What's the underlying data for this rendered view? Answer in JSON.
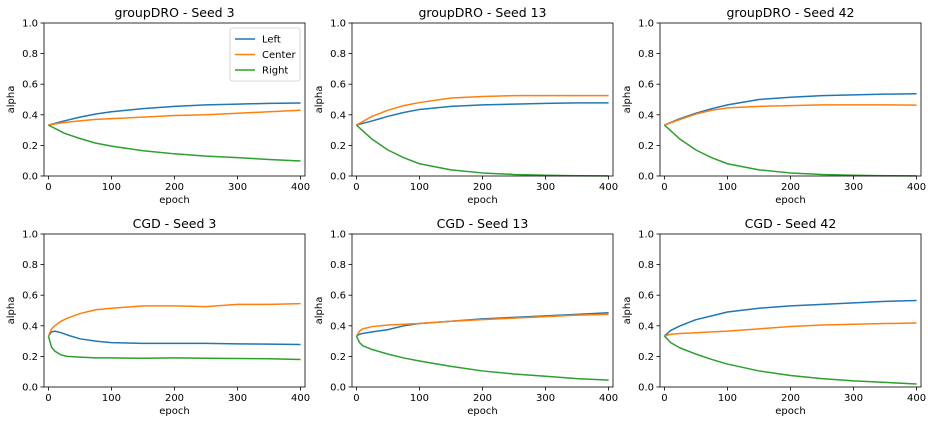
{
  "chart_data": [
    {
      "type": "line",
      "title": "groupDRO - Seed 3",
      "xlabel": "epoch",
      "ylabel": "alpha",
      "xlim": [
        -7,
        407
      ],
      "ylim": [
        0,
        1
      ],
      "xticks": [
        0,
        100,
        200,
        300,
        400
      ],
      "yticks": [
        0.0,
        0.2,
        0.4,
        0.6,
        0.8,
        1.0
      ],
      "legend": "top-right",
      "x": [
        0,
        25,
        50,
        75,
        100,
        150,
        200,
        250,
        300,
        350,
        400
      ],
      "series": [
        {
          "name": "Left",
          "color": "#1f77b4",
          "values": [
            0.333,
            0.36,
            0.385,
            0.405,
            0.42,
            0.44,
            0.455,
            0.465,
            0.47,
            0.475,
            0.477
          ]
        },
        {
          "name": "Center",
          "color": "#ff7f0e",
          "values": [
            0.333,
            0.35,
            0.36,
            0.37,
            0.375,
            0.385,
            0.395,
            0.4,
            0.41,
            0.42,
            0.43
          ]
        },
        {
          "name": "Right",
          "color": "#2ca02c",
          "values": [
            0.333,
            0.28,
            0.245,
            0.215,
            0.195,
            0.165,
            0.145,
            0.13,
            0.12,
            0.108,
            0.098
          ]
        }
      ]
    },
    {
      "type": "line",
      "title": "groupDRO - Seed 13",
      "xlabel": "epoch",
      "ylabel": "alpha",
      "xlim": [
        -7,
        407
      ],
      "ylim": [
        0,
        1
      ],
      "xticks": [
        0,
        100,
        200,
        300,
        400
      ],
      "yticks": [
        0.0,
        0.2,
        0.4,
        0.6,
        0.8,
        1.0
      ],
      "x": [
        0,
        25,
        50,
        75,
        100,
        150,
        200,
        250,
        300,
        350,
        400
      ],
      "series": [
        {
          "name": "Left",
          "color": "#1f77b4",
          "values": [
            0.333,
            0.36,
            0.39,
            0.415,
            0.435,
            0.455,
            0.465,
            0.47,
            0.475,
            0.478,
            0.478
          ]
        },
        {
          "name": "Center",
          "color": "#ff7f0e",
          "values": [
            0.333,
            0.39,
            0.43,
            0.46,
            0.48,
            0.51,
            0.52,
            0.525,
            0.525,
            0.525,
            0.525
          ]
        },
        {
          "name": "Right",
          "color": "#2ca02c",
          "values": [
            0.333,
            0.24,
            0.17,
            0.12,
            0.08,
            0.04,
            0.02,
            0.01,
            0.005,
            0.002,
            0.001
          ]
        }
      ]
    },
    {
      "type": "line",
      "title": "groupDRO - Seed 42",
      "xlabel": "epoch",
      "ylabel": "alpha",
      "xlim": [
        -7,
        407
      ],
      "ylim": [
        0,
        1
      ],
      "xticks": [
        0,
        100,
        200,
        300,
        400
      ],
      "yticks": [
        0.0,
        0.2,
        0.4,
        0.6,
        0.8,
        1.0
      ],
      "x": [
        0,
        25,
        50,
        75,
        100,
        150,
        200,
        250,
        300,
        350,
        400
      ],
      "series": [
        {
          "name": "Left",
          "color": "#1f77b4",
          "values": [
            0.333,
            0.375,
            0.41,
            0.44,
            0.465,
            0.5,
            0.515,
            0.525,
            0.53,
            0.535,
            0.538
          ]
        },
        {
          "name": "Center",
          "color": "#ff7f0e",
          "values": [
            0.333,
            0.37,
            0.405,
            0.43,
            0.445,
            0.455,
            0.46,
            0.465,
            0.465,
            0.465,
            0.463
          ]
        },
        {
          "name": "Right",
          "color": "#2ca02c",
          "values": [
            0.333,
            0.24,
            0.17,
            0.12,
            0.08,
            0.04,
            0.02,
            0.01,
            0.005,
            0.002,
            0.001
          ]
        }
      ]
    },
    {
      "type": "line",
      "title": "CGD - Seed 3",
      "xlabel": "epoch",
      "ylabel": "alpha",
      "xlim": [
        -7,
        407
      ],
      "ylim": [
        0,
        1
      ],
      "xticks": [
        0,
        100,
        200,
        300,
        400
      ],
      "yticks": [
        0.0,
        0.2,
        0.4,
        0.6,
        0.8,
        1.0
      ],
      "x": [
        0,
        5,
        10,
        20,
        30,
        50,
        75,
        100,
        150,
        200,
        250,
        300,
        350,
        400
      ],
      "series": [
        {
          "name": "Left",
          "color": "#1f77b4",
          "values": [
            0.333,
            0.36,
            0.365,
            0.355,
            0.34,
            0.315,
            0.3,
            0.29,
            0.285,
            0.285,
            0.285,
            0.282,
            0.28,
            0.278
          ]
        },
        {
          "name": "Center",
          "color": "#ff7f0e",
          "values": [
            0.333,
            0.38,
            0.4,
            0.43,
            0.45,
            0.48,
            0.505,
            0.515,
            0.53,
            0.53,
            0.525,
            0.54,
            0.54,
            0.545
          ]
        },
        {
          "name": "Right",
          "color": "#2ca02c",
          "values": [
            0.333,
            0.26,
            0.235,
            0.21,
            0.2,
            0.195,
            0.19,
            0.19,
            0.188,
            0.19,
            0.188,
            0.186,
            0.185,
            0.18
          ]
        }
      ]
    },
    {
      "type": "line",
      "title": "CGD - Seed 13",
      "xlabel": "epoch",
      "ylabel": "alpha",
      "xlim": [
        -7,
        407
      ],
      "ylim": [
        0,
        1
      ],
      "xticks": [
        0,
        100,
        200,
        300,
        400
      ],
      "yticks": [
        0.0,
        0.2,
        0.4,
        0.6,
        0.8,
        1.0
      ],
      "x": [
        0,
        5,
        10,
        25,
        50,
        75,
        100,
        150,
        200,
        250,
        300,
        350,
        400
      ],
      "series": [
        {
          "name": "Left",
          "color": "#1f77b4",
          "values": [
            0.333,
            0.345,
            0.35,
            0.36,
            0.375,
            0.4,
            0.415,
            0.43,
            0.445,
            0.455,
            0.465,
            0.475,
            0.485
          ]
        },
        {
          "name": "Center",
          "color": "#ff7f0e",
          "values": [
            0.333,
            0.365,
            0.38,
            0.395,
            0.405,
            0.41,
            0.415,
            0.43,
            0.44,
            0.45,
            0.46,
            0.47,
            0.475
          ]
        },
        {
          "name": "Right",
          "color": "#2ca02c",
          "values": [
            0.333,
            0.29,
            0.27,
            0.245,
            0.215,
            0.19,
            0.17,
            0.135,
            0.105,
            0.085,
            0.07,
            0.055,
            0.045
          ]
        }
      ]
    },
    {
      "type": "line",
      "title": "CGD - Seed 42",
      "xlabel": "epoch",
      "ylabel": "alpha",
      "xlim": [
        -7,
        407
      ],
      "ylim": [
        0,
        1
      ],
      "xticks": [
        0,
        100,
        200,
        300,
        400
      ],
      "yticks": [
        0.0,
        0.2,
        0.4,
        0.6,
        0.8,
        1.0
      ],
      "x": [
        0,
        10,
        25,
        50,
        75,
        100,
        150,
        200,
        250,
        300,
        350,
        400
      ],
      "series": [
        {
          "name": "Left",
          "color": "#1f77b4",
          "values": [
            0.333,
            0.37,
            0.4,
            0.44,
            0.465,
            0.49,
            0.515,
            0.53,
            0.54,
            0.55,
            0.56,
            0.565
          ]
        },
        {
          "name": "Center",
          "color": "#ff7f0e",
          "values": [
            0.333,
            0.345,
            0.35,
            0.355,
            0.36,
            0.365,
            0.38,
            0.395,
            0.405,
            0.41,
            0.415,
            0.418
          ]
        },
        {
          "name": "Right",
          "color": "#2ca02c",
          "values": [
            0.333,
            0.29,
            0.255,
            0.215,
            0.18,
            0.15,
            0.105,
            0.075,
            0.055,
            0.04,
            0.03,
            0.02
          ]
        }
      ]
    }
  ]
}
